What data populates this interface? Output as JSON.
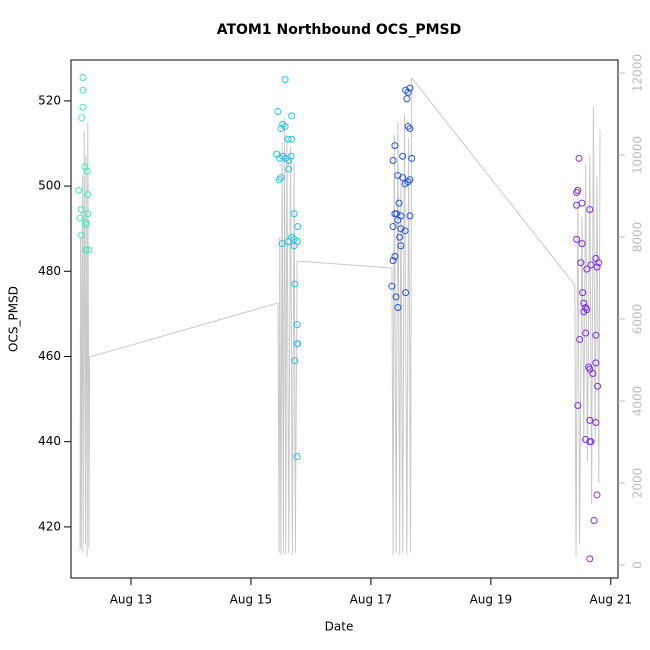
{
  "chart_data": {
    "type": "scatter",
    "title": "ATOM1 Northbound OCS_PMSD",
    "x_label": "Date",
    "y_label": "OCS_PMSD",
    "xlim": [
      12.0,
      21.12
    ],
    "xticks": [
      {
        "value": 13,
        "label": "Aug 13"
      },
      {
        "value": 15,
        "label": "Aug 15"
      },
      {
        "value": 17,
        "label": "Aug 17"
      },
      {
        "value": 19,
        "label": "Aug 19"
      },
      {
        "value": 21,
        "label": "Aug 21"
      }
    ],
    "ylim": [
      408,
      529.6
    ],
    "yticks": [
      420,
      440,
      460,
      480,
      500,
      520
    ],
    "y2lim": [
      -317,
      12317
    ],
    "y2ticks": [
      0,
      2000,
      4000,
      6000,
      8000,
      10000,
      12000
    ],
    "y2_color": "#bbbbbb",
    "series": [
      {
        "type": "line",
        "axis": "y2",
        "color": "#c8c8c8",
        "x": [
          12.15,
          12.16,
          12.17,
          12.19,
          12.2,
          12.22,
          12.24,
          12.25,
          12.27,
          12.28,
          12.3,
          12.31,
          15.45,
          15.47,
          15.48,
          15.5,
          15.52,
          15.54,
          15.56,
          15.58,
          15.6,
          15.63,
          15.66,
          15.69,
          15.72,
          15.74,
          15.77,
          17.35,
          17.37,
          17.39,
          17.42,
          17.45,
          17.48,
          17.5,
          17.53,
          17.56,
          17.6,
          17.63,
          17.66,
          17.68,
          20.4,
          20.42,
          20.45,
          20.48,
          20.52,
          20.55,
          20.58,
          20.61,
          20.65,
          20.68,
          20.71,
          20.74,
          20.77,
          20.8,
          20.82
        ],
        "values": [
          366,
          8000,
          400,
          9500,
          300,
          10600,
          500,
          10000,
          200,
          10800,
          400,
          5073,
          6390,
          300,
          8000,
          250,
          10300,
          300,
          10900,
          250,
          10500,
          300,
          10200,
          250,
          9800,
          300,
          7415,
          7244,
          250,
          10500,
          300,
          10800,
          250,
          9500,
          300,
          11000,
          250,
          10400,
          300,
          11878,
          6829,
          200,
          9000,
          500,
          8500,
          3000,
          9800,
          2500,
          10000,
          1500,
          11200,
          3000,
          9500,
          2000,
          10600
        ]
      },
      {
        "color": "#3cf0b0",
        "x": [
          12.2,
          12.2,
          12.2,
          12.18,
          12.23,
          12.27,
          12.13,
          12.28,
          12.17,
          12.28,
          12.15,
          12.25,
          12.25,
          12.17,
          12.25,
          12.3
        ],
        "values": [
          525.5,
          522.5,
          518.5,
          516,
          504.5,
          503.5,
          499,
          498,
          494.5,
          493.5,
          492.5,
          491.5,
          491,
          488.5,
          485,
          485
        ]
      },
      {
        "color": "#22c4ee",
        "x": [
          15.57,
          15.45,
          15.68,
          15.53,
          15.57,
          15.5,
          15.62,
          15.68,
          15.43,
          15.53,
          15.67,
          15.48,
          15.58,
          15.63,
          15.63,
          15.5,
          15.47,
          15.72,
          15.78,
          15.68,
          15.72,
          15.62,
          15.77,
          15.52,
          15.72,
          15.73,
          15.77,
          15.77,
          15.78,
          15.73,
          15.77
        ],
        "values": [
          525,
          517.5,
          516.5,
          514.5,
          514,
          513.5,
          511,
          511,
          507.5,
          507,
          507,
          506.5,
          506.5,
          506,
          504,
          502,
          501.5,
          493.5,
          490.5,
          488,
          487.5,
          487,
          487,
          486.5,
          486,
          477,
          467.5,
          463,
          463,
          459,
          436.5
        ]
      },
      {
        "color": "#2255e6",
        "x": [
          17.65,
          17.58,
          17.62,
          17.6,
          17.62,
          17.65,
          17.4,
          17.53,
          17.37,
          17.68,
          17.45,
          17.53,
          17.65,
          17.62,
          17.57,
          17.47,
          17.4,
          17.43,
          17.5,
          17.65,
          17.45,
          17.37,
          17.5,
          17.57,
          17.48,
          17.5,
          17.4,
          17.37,
          17.35,
          17.58,
          17.42,
          17.45
        ],
        "values": [
          523,
          522.5,
          522,
          520.5,
          514,
          513.5,
          509.5,
          507,
          506,
          506.5,
          502.5,
          502,
          501.5,
          501,
          500.5,
          496,
          493.5,
          493.5,
          493,
          493,
          492,
          490.5,
          490,
          489.5,
          488,
          486,
          483.5,
          482.5,
          476.5,
          475,
          474,
          471.5
        ]
      },
      {
        "color": "#7a2ee6",
        "x": [
          20.47,
          20.45,
          20.43,
          20.52,
          20.43,
          20.65,
          20.43,
          20.52,
          20.5,
          20.67,
          20.77,
          20.6,
          20.75,
          20.8,
          20.53,
          20.55,
          20.58,
          20.6,
          20.55,
          20.58,
          20.75,
          20.48,
          20.75,
          20.63,
          20.65,
          20.7,
          20.78,
          20.45,
          20.65,
          20.75,
          20.58,
          20.67,
          20.65,
          20.77,
          20.72,
          20.65
        ],
        "values": [
          506.5,
          499,
          498.5,
          496,
          495.5,
          494.5,
          487.5,
          486.5,
          482,
          481.5,
          481,
          480.5,
          483,
          482,
          475,
          472.5,
          471.5,
          471,
          470.5,
          465.5,
          465,
          464,
          458.5,
          457.5,
          457,
          456,
          453,
          448.5,
          445,
          444.5,
          440.5,
          440,
          440,
          427.5,
          421.5,
          412.5
        ]
      }
    ]
  }
}
